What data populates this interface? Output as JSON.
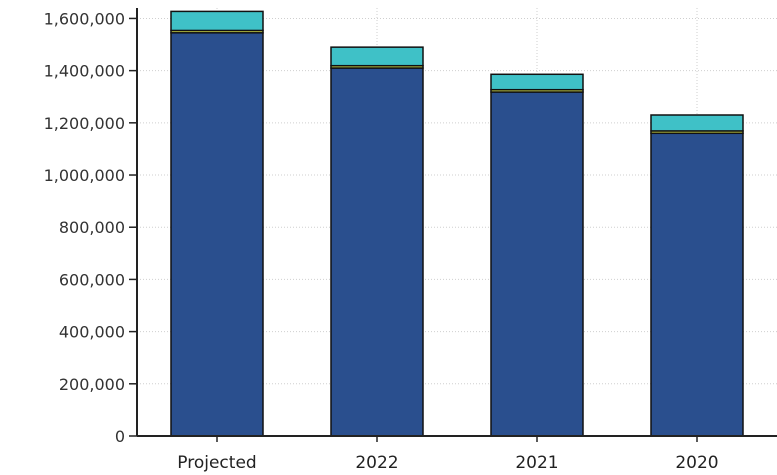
{
  "chart_data": {
    "type": "bar",
    "stacked": true,
    "categories": [
      "Projected",
      "2022",
      "2021",
      "2020"
    ],
    "series": [
      {
        "color": "#2a4f8e",
        "values": [
          1545000,
          1410000,
          1318000,
          1160000
        ]
      },
      {
        "color": "#d8e34a",
        "values": [
          9000,
          9000,
          9000,
          9000
        ]
      },
      {
        "color": "#3fc1c7",
        "values": [
          73000,
          71000,
          59000,
          61000
        ]
      }
    ],
    "y_ticks": [
      0,
      200000,
      400000,
      600000,
      800000,
      1000000,
      1200000,
      1400000,
      1600000
    ],
    "y_tick_labels": [
      "0",
      "200,000",
      "400,000",
      "600,000",
      "800,000",
      "1,000,000",
      "1,200,000",
      "1,400,000",
      "1,600,000"
    ],
    "ylim": [
      0,
      1640000
    ],
    "grid": true,
    "legend": "none"
  }
}
